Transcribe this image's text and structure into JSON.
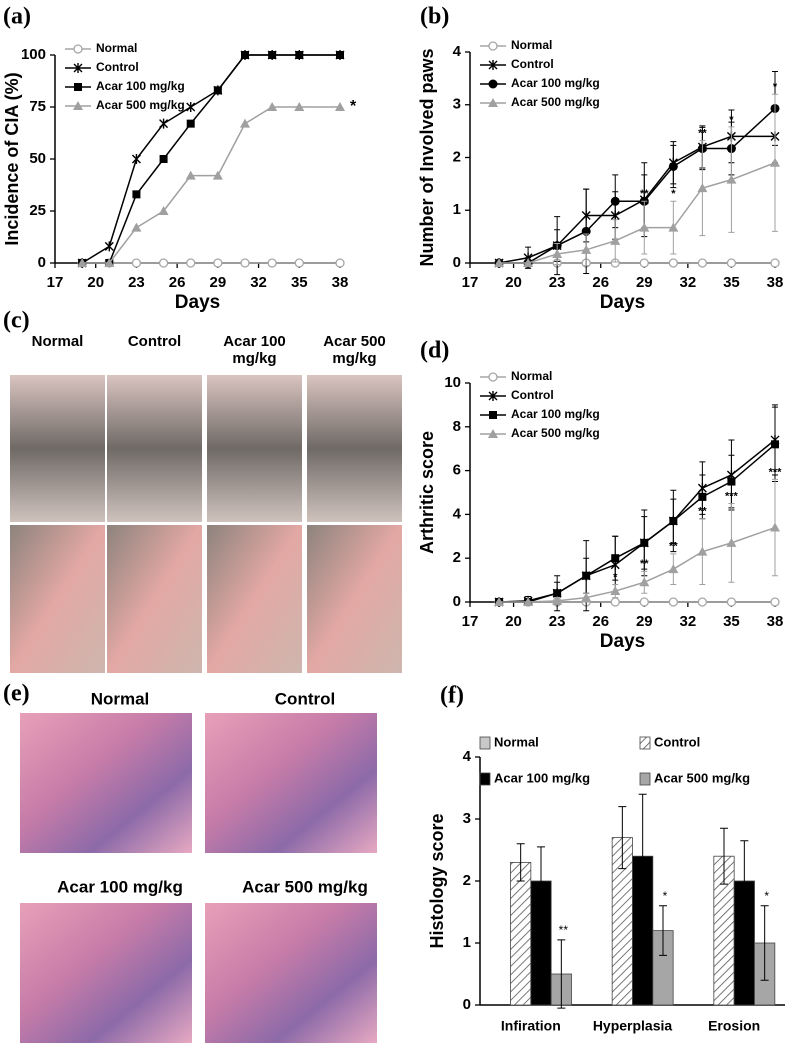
{
  "chart_data": [
    {
      "type": "line",
      "panel": "(a)",
      "ylabel": "Incidence of CIA (%)",
      "xlabel": "Days",
      "x": [
        19,
        21,
        23,
        25,
        27,
        29,
        31,
        33,
        35,
        38
      ],
      "xlim": [
        17,
        38
      ],
      "xticks": [
        17,
        20,
        23,
        26,
        29,
        32,
        35,
        38
      ],
      "ylim": [
        0,
        100
      ],
      "yticks": [
        0,
        25,
        50,
        75,
        100
      ],
      "legend": "upper left",
      "series": [
        {
          "name": "Normal",
          "color": "#a6a6a6",
          "marker": "open-circle",
          "values": [
            0,
            0,
            0,
            0,
            0,
            0,
            0,
            0,
            0,
            0
          ]
        },
        {
          "name": "Control",
          "color": "#000000",
          "marker": "star",
          "values": [
            0,
            8,
            50,
            67,
            75,
            83,
            100,
            100,
            100,
            100
          ]
        },
        {
          "name": "Acar 100 mg/kg",
          "color": "#000000",
          "marker": "square",
          "values": [
            0,
            0,
            33,
            50,
            67,
            83,
            100,
            100,
            100,
            100
          ]
        },
        {
          "name": "Acar 500 mg/kg",
          "color": "#a0a0a0",
          "marker": "triangle",
          "values": [
            0,
            0,
            17,
            25,
            42,
            42,
            67,
            75,
            75,
            75
          ],
          "significance": [
            null,
            null,
            null,
            null,
            null,
            null,
            null,
            null,
            null,
            "*"
          ]
        }
      ]
    },
    {
      "type": "line",
      "panel": "(b)",
      "ylabel": "Number of Involved paws",
      "xlabel": "Days",
      "x": [
        19,
        21,
        23,
        25,
        27,
        29,
        31,
        33,
        35,
        38
      ],
      "xlim": [
        17,
        38
      ],
      "xticks": [
        17,
        20,
        23,
        26,
        29,
        32,
        35,
        38
      ],
      "ylim": [
        0,
        4
      ],
      "yticks": [
        0,
        1,
        2,
        3,
        4
      ],
      "legend": "upper left",
      "series": [
        {
          "name": "Normal",
          "color": "#a6a6a6",
          "marker": "open-circle",
          "values": [
            0,
            0,
            0,
            0,
            0,
            0,
            0,
            0,
            0,
            0
          ]
        },
        {
          "name": "Control",
          "color": "#000000",
          "marker": "star",
          "values": [
            0,
            0.1,
            0.33,
            0.9,
            0.9,
            1.2,
            1.9,
            2.2,
            2.4,
            2.4
          ],
          "errors": [
            0,
            0.2,
            0.55,
            0.5,
            0.45,
            0.7,
            0.4,
            0.4,
            0.5,
            0.5
          ]
        },
        {
          "name": "Acar 100 mg/kg",
          "color": "#000000",
          "marker": "circle",
          "values": [
            0,
            0,
            0.33,
            0.6,
            1.17,
            1.17,
            1.83,
            2.17,
            2.17,
            2.93
          ],
          "errors": [
            0,
            0.1,
            0.3,
            0.8,
            0.5,
            0.5,
            0.4,
            0.4,
            0.5,
            0.7
          ]
        },
        {
          "name": "Acar 500 mg/kg",
          "color": "#a0a0a0",
          "marker": "triangle",
          "values": [
            0,
            0,
            0.17,
            0.25,
            0.42,
            0.67,
            0.67,
            1.42,
            1.58,
            1.9
          ],
          "errors": [
            0,
            0,
            0.2,
            0.3,
            0.4,
            0.5,
            0.5,
            0.9,
            1.0,
            1.3
          ],
          "significance": [
            null,
            null,
            null,
            null,
            null,
            "**",
            "*",
            "**",
            "*",
            "*"
          ]
        }
      ]
    },
    {
      "type": "line",
      "panel": "(d)",
      "ylabel": "Arthritic score",
      "xlabel": "Days",
      "x": [
        19,
        21,
        23,
        25,
        27,
        29,
        31,
        33,
        35,
        38
      ],
      "xlim": [
        17,
        38
      ],
      "xticks": [
        17,
        20,
        23,
        26,
        29,
        32,
        35,
        38
      ],
      "ylim": [
        0,
        10
      ],
      "yticks": [
        0,
        2,
        4,
        6,
        8,
        10
      ],
      "legend": "upper left",
      "series": [
        {
          "name": "Normal",
          "color": "#a6a6a6",
          "marker": "open-circle",
          "values": [
            0,
            0,
            0,
            0,
            0,
            0,
            0,
            0,
            0,
            0
          ]
        },
        {
          "name": "Control",
          "color": "#000000",
          "marker": "star",
          "values": [
            0,
            0.05,
            0.4,
            1.2,
            1.7,
            2.7,
            3.7,
            5.2,
            5.8,
            7.4
          ],
          "errors": [
            0,
            0.2,
            0.8,
            1.6,
            1.3,
            1.5,
            1.4,
            1.2,
            1.6,
            1.6
          ]
        },
        {
          "name": "Acar 100 mg/kg",
          "color": "#000000",
          "marker": "square",
          "values": [
            0,
            0,
            0.4,
            1.2,
            2.0,
            2.7,
            3.7,
            4.8,
            5.5,
            7.2
          ],
          "errors": [
            0,
            0.1,
            0.5,
            0.8,
            1.0,
            1.2,
            1.0,
            1.0,
            1.2,
            1.7
          ]
        },
        {
          "name": "Acar 500 mg/kg",
          "color": "#a0a0a0",
          "marker": "triangle",
          "values": [
            0,
            0,
            0.05,
            0.2,
            0.5,
            0.9,
            1.5,
            2.3,
            2.7,
            3.4
          ],
          "errors": [
            0,
            0,
            0.1,
            0.2,
            0.3,
            0.5,
            0.7,
            1.5,
            1.8,
            2.2
          ],
          "significance": [
            null,
            null,
            null,
            null,
            "*",
            "**",
            "**",
            "**",
            "***",
            "***"
          ]
        }
      ]
    },
    {
      "type": "bar",
      "panel": "(f)",
      "ylabel": "Histology score",
      "categories": [
        "Infiration",
        "Hyperplasia",
        "Erosion"
      ],
      "ylim": [
        0,
        4
      ],
      "yticks": [
        0,
        1,
        2,
        3,
        4
      ],
      "legend": "upper",
      "series": [
        {
          "name": "Normal",
          "color": "#c8c8c8",
          "hatch": false,
          "values": [
            0,
            0,
            0
          ]
        },
        {
          "name": "Control",
          "color": "#ffffff",
          "hatch": true,
          "values": [
            2.3,
            2.7,
            2.4
          ],
          "errors": [
            0.3,
            0.5,
            0.45
          ]
        },
        {
          "name": "Acar 100 mg/kg",
          "color": "#000000",
          "hatch": false,
          "values": [
            2.0,
            2.4,
            2.0
          ],
          "errors": [
            0.55,
            1.0,
            0.65
          ]
        },
        {
          "name": "Acar 500 mg/kg",
          "color": "#a6a6a6",
          "hatch": false,
          "values": [
            0.5,
            1.2,
            1.0
          ],
          "errors": [
            0.55,
            0.4,
            0.6
          ],
          "significance": [
            "**",
            "*",
            "*"
          ]
        }
      ]
    }
  ],
  "photos": {
    "c": {
      "panel": "(c)",
      "captions": [
        "Normal",
        "Control",
        "Acar 100 mg/kg",
        "Acar 500 mg/kg"
      ]
    },
    "e": {
      "panel": "(e)",
      "captions": [
        "Normal",
        "Control",
        "Acar 100 mg/kg",
        "Acar 500 mg/kg"
      ]
    }
  }
}
